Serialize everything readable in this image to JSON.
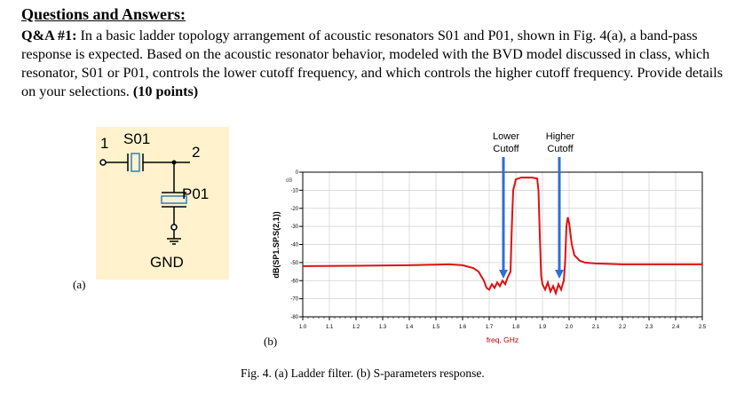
{
  "heading": "Questions and Answers:",
  "question": {
    "label": "Q&A #1:",
    "text": "In a basic ladder topology arrangement of acoustic resonators S01 and P01, shown in Fig. 4(a), a band-pass response is expected. Based on the acoustic resonator behavior, modeled with the BVD model discussed in class, which resonator, S01 or P01, controls the lower cutoff frequency, and which controls the higher cutoff frequency. Provide details on your selections.",
    "points": "(10 points)"
  },
  "circuit": {
    "series_resonator": "S01",
    "shunt_resonator": "P01",
    "port_in": "1",
    "port_out": "2",
    "ground": "GND",
    "panel_label": "(a)"
  },
  "plot": {
    "panel_label": "(b)",
    "caption": "Fig. 4. (a) Ladder filter. (b) S-parameters response.",
    "annotations": {
      "lower_line1": "Lower",
      "lower_line2": "Cutoff",
      "higher_line1": "Higher",
      "higher_line2": "Cutoff"
    }
  },
  "colors": {
    "trace": "#e01010",
    "arrow": "#2f6fd6",
    "circuit_bg": "#fff2cc",
    "resonator": "#2f7fbf"
  },
  "chart_data": {
    "type": "line",
    "title": "",
    "xlabel": "freq, GHz",
    "ylabel": "dB(SP1.SP.S(2,1))",
    "y_unit_label": "dB",
    "xlim": [
      1.0,
      2.5
    ],
    "ylim": [
      -80,
      0
    ],
    "x_ticks": [
      "1.0",
      "1.1",
      "1.2",
      "1.3",
      "1.4",
      "1.5",
      "1.6",
      "1.7",
      "1.8",
      "1.9",
      "2.0",
      "2.1",
      "2.2",
      "2.3",
      "2.4",
      "2.5"
    ],
    "y_ticks": [
      "0",
      "-10",
      "-20",
      "-30",
      "-40",
      "-50",
      "-60",
      "-70",
      "-80"
    ],
    "grid": true,
    "series": [
      {
        "name": "S21",
        "x": [
          1.0,
          1.2,
          1.4,
          1.55,
          1.6,
          1.64,
          1.66,
          1.68,
          1.69,
          1.7,
          1.71,
          1.72,
          1.73,
          1.74,
          1.75,
          1.76,
          1.77,
          1.78,
          1.785,
          1.79,
          1.8,
          1.82,
          1.84,
          1.86,
          1.88,
          1.885,
          1.89,
          1.895,
          1.9,
          1.91,
          1.92,
          1.93,
          1.94,
          1.95,
          1.96,
          1.97,
          1.98,
          1.985,
          1.99,
          1.995,
          2.0,
          2.01,
          2.02,
          2.04,
          2.06,
          2.1,
          2.2,
          2.35,
          2.5
        ],
        "values": [
          -52,
          -51.8,
          -51.5,
          -51,
          -51.5,
          -53,
          -55,
          -60,
          -64,
          -65,
          -62,
          -64,
          -61,
          -63,
          -60,
          -62,
          -58,
          -55,
          -30,
          -10,
          -4,
          -3,
          -3,
          -3,
          -3.5,
          -10,
          -35,
          -57,
          -62,
          -65,
          -61,
          -66,
          -63,
          -67,
          -62,
          -65,
          -60,
          -50,
          -30,
          -25,
          -28,
          -40,
          -46,
          -49,
          -50,
          -50.5,
          -51,
          -51,
          -51
        ]
      }
    ]
  }
}
